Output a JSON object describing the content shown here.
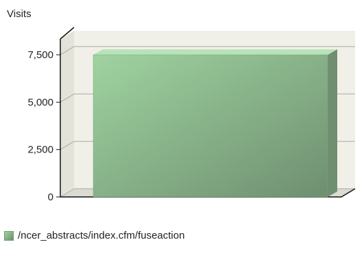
{
  "colors": {
    "bar_light": "#9fd3a0",
    "bar_dark": "#6f8f70",
    "bar_top": "#b8e3b8",
    "wall": "#f1f0e8",
    "floor": "#dcdbd2",
    "grid": "#a8a8a8",
    "axis": "#111111"
  },
  "chart_data": {
    "type": "bar",
    "title": "",
    "xlabel": "",
    "ylabel": "Visits",
    "ylim": [
      0,
      8333
    ],
    "yticks": [
      0,
      2500,
      5000,
      7500
    ],
    "ytick_labels": [
      "0",
      "2,500",
      "5,000",
      "7,500"
    ],
    "grid": true,
    "legend_position": "bottom-left",
    "categories": [
      ""
    ],
    "series": [
      {
        "name": "/ncer_abstracts/index.cfm/fuseaction",
        "values": [
          7500
        ]
      }
    ]
  }
}
